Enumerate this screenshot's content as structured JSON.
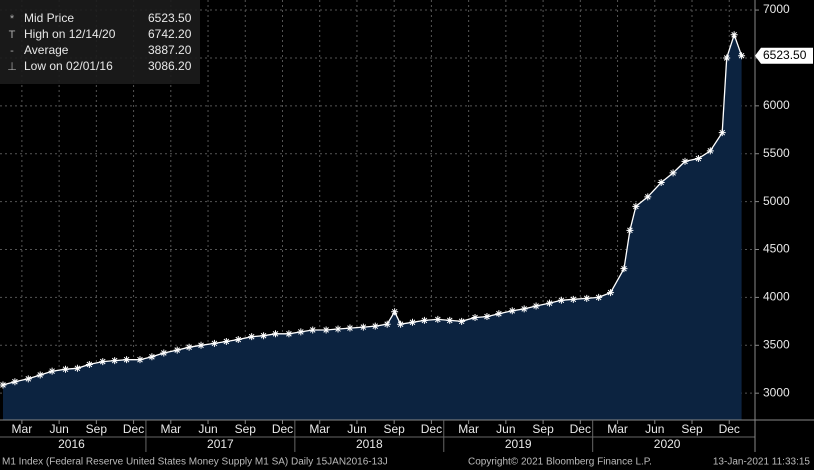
{
  "chart_data": {
    "type": "area",
    "legend": [
      {
        "name": "Mid Price",
        "value": 6523.5,
        "label": "6523.50"
      },
      {
        "name": "High on 12/14/20",
        "value": 6742.2,
        "label": "6742.20"
      },
      {
        "name": "Average",
        "value": 3887.2,
        "label": "3887.20"
      },
      {
        "name": "Low on 02/01/16",
        "value": 3086.2,
        "label": "3086.20"
      }
    ],
    "last_label": {
      "value": 6523.5,
      "label": "6523.50"
    },
    "series": [
      {
        "name": "Mid Price",
        "color": "#ffffff",
        "fill": "#0c2340",
        "x": [
          2016.04,
          2016.12,
          2016.21,
          2016.29,
          2016.37,
          2016.46,
          2016.54,
          2016.62,
          2016.71,
          2016.79,
          2016.87,
          2016.96,
          2017.04,
          2017.12,
          2017.21,
          2017.29,
          2017.37,
          2017.46,
          2017.54,
          2017.62,
          2017.71,
          2017.79,
          2017.87,
          2017.96,
          2018.04,
          2018.12,
          2018.21,
          2018.29,
          2018.37,
          2018.46,
          2018.54,
          2018.62,
          2018.67,
          2018.71,
          2018.79,
          2018.87,
          2018.96,
          2019.04,
          2019.12,
          2019.21,
          2019.29,
          2019.37,
          2019.46,
          2019.54,
          2019.62,
          2019.71,
          2019.79,
          2019.87,
          2019.96,
          2020.04,
          2020.12,
          2020.21,
          2020.25,
          2020.29,
          2020.37,
          2020.46,
          2020.54,
          2020.62,
          2020.71,
          2020.79,
          2020.87,
          2020.9,
          2020.95,
          2021.0
        ],
        "values": [
          3086,
          3120,
          3150,
          3190,
          3230,
          3250,
          3260,
          3300,
          3330,
          3340,
          3350,
          3350,
          3380,
          3420,
          3450,
          3480,
          3500,
          3520,
          3540,
          3560,
          3590,
          3600,
          3620,
          3620,
          3640,
          3660,
          3660,
          3670,
          3680,
          3690,
          3700,
          3720,
          3850,
          3720,
          3740,
          3760,
          3770,
          3760,
          3750,
          3790,
          3800,
          3830,
          3860,
          3880,
          3910,
          3940,
          3970,
          3980,
          3990,
          4000,
          4050,
          4300,
          4700,
          4950,
          5050,
          5200,
          5300,
          5420,
          5450,
          5530,
          5720,
          6500,
          6742,
          6523.5
        ]
      }
    ],
    "xlim": [
      2016.02,
      2021.09
    ],
    "ylim": [
      2720,
      7105
    ],
    "yticks": [
      3000,
      3500,
      4000,
      4500,
      5000,
      5500,
      6000,
      6500,
      7000
    ],
    "xticks": [
      {
        "value": 2016.167,
        "label": "Mar"
      },
      {
        "value": 2016.417,
        "label": "Jun"
      },
      {
        "value": 2016.667,
        "label": "Sep"
      },
      {
        "value": 2016.917,
        "label": "Dec"
      },
      {
        "value": 2017.167,
        "label": "Mar"
      },
      {
        "value": 2017.417,
        "label": "Jun"
      },
      {
        "value": 2017.667,
        "label": "Sep"
      },
      {
        "value": 2017.917,
        "label": "Dec"
      },
      {
        "value": 2018.167,
        "label": "Mar"
      },
      {
        "value": 2018.417,
        "label": "Jun"
      },
      {
        "value": 2018.667,
        "label": "Sep"
      },
      {
        "value": 2018.917,
        "label": "Dec"
      },
      {
        "value": 2019.167,
        "label": "Mar"
      },
      {
        "value": 2019.417,
        "label": "Jun"
      },
      {
        "value": 2019.667,
        "label": "Sep"
      },
      {
        "value": 2019.917,
        "label": "Dec"
      },
      {
        "value": 2020.167,
        "label": "Mar"
      },
      {
        "value": 2020.417,
        "label": "Jun"
      },
      {
        "value": 2020.667,
        "label": "Sep"
      },
      {
        "value": 2020.917,
        "label": "Dec"
      }
    ],
    "years": [
      "2016",
      "2017",
      "2018",
      "2019",
      "2020"
    ],
    "grid": true,
    "footer": {
      "source": "M1 Index (Federal Reserve United States Money Supply M1 SA)  Daily 15JAN2016-13J",
      "copyright": "Copyright© 2021 Bloomberg Finance L.P.",
      "timestamp": "13-Jan-2021 11:33:15"
    }
  }
}
